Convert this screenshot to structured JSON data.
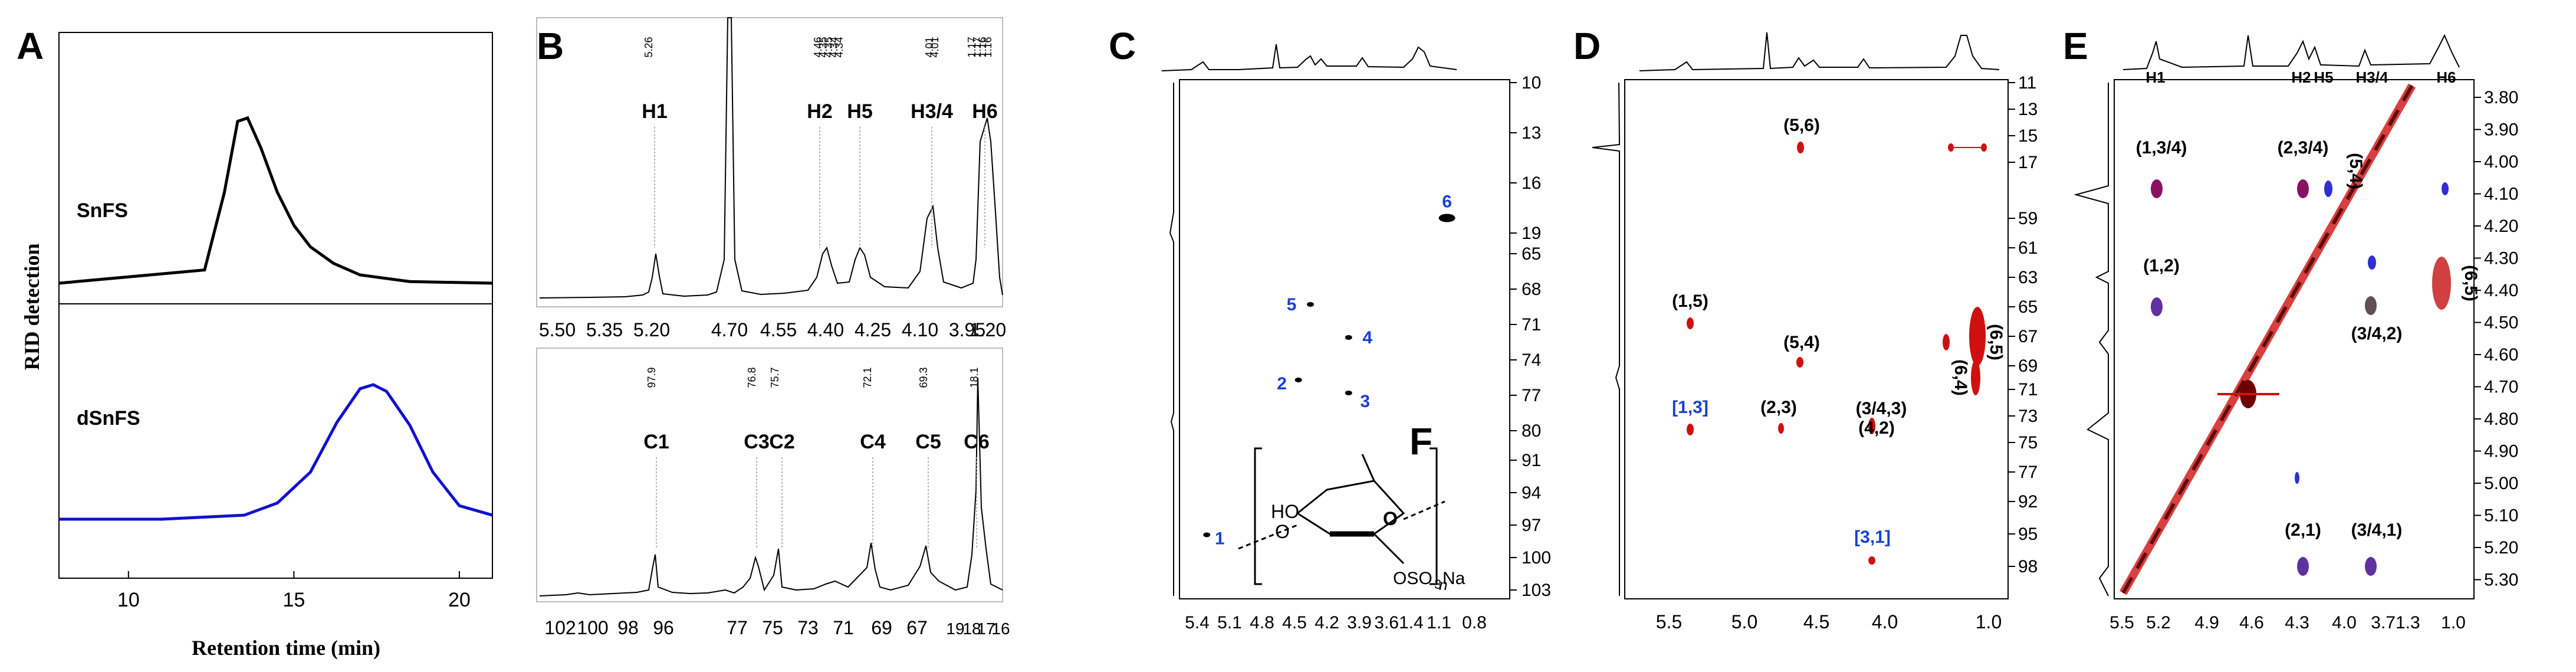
{
  "chart_data": [
    {
      "panel": "A",
      "type": "line",
      "ylabel": "RID detection",
      "xlabel": "Retention time (min)",
      "x_ticks": [
        10,
        15,
        20
      ],
      "xlim": [
        7.9,
        21
      ],
      "series": [
        {
          "name": "SnFS",
          "color": "#000000",
          "x": [
            7.9,
            12.3,
            12.9,
            13.3,
            13.6,
            14.0,
            14.5,
            15.0,
            15.5,
            16.2,
            17.0,
            18.5,
            21.0
          ],
          "y": [
            0.0,
            0.08,
            0.55,
            0.98,
            1.0,
            0.82,
            0.55,
            0.35,
            0.22,
            0.12,
            0.05,
            0.01,
            0.0
          ]
        },
        {
          "name": "dSnFS",
          "color": "#1010d0",
          "x": [
            7.9,
            11.0,
            13.5,
            14.5,
            15.5,
            16.3,
            17.0,
            17.4,
            17.8,
            18.5,
            19.2,
            20.0,
            21.0
          ],
          "y": [
            0.0,
            0.0,
            0.03,
            0.12,
            0.35,
            0.72,
            0.97,
            1.0,
            0.95,
            0.7,
            0.35,
            0.1,
            0.03
          ]
        }
      ]
    },
    {
      "panel": "B",
      "type": "line",
      "spectra": [
        {
          "nucleus": "1H",
          "x_ticks": [
            "5.50",
            "5.35",
            "5.20",
            "4.70",
            "4.55",
            "4.40",
            "4.25",
            "4.10",
            "3.95",
            "1.20"
          ],
          "peak_shifts": [
            "5.26",
            "4.46",
            "4.35",
            "4.35",
            "4.34",
            "4.34",
            "4.01",
            "4.01",
            "1.17",
            "1.17",
            "1.16",
            "1.16"
          ],
          "assignments": [
            {
              "label": "H1",
              "shift": 5.26
            },
            {
              "label": "H2",
              "shift": 4.46
            },
            {
              "label": "H5",
              "shift": 4.35
            },
            {
              "label": "H3/4",
              "shift": 4.01
            },
            {
              "label": "H6",
              "shift": 1.17
            }
          ]
        },
        {
          "nucleus": "13C",
          "x_ticks": [
            "102",
            "100",
            "98",
            "96",
            "77",
            "75",
            "73",
            "71",
            "69",
            "67",
            "19",
            "18",
            "17",
            "16"
          ],
          "peak_shifts": [
            "97.9",
            "76.8",
            "75.7",
            "72.1",
            "69.3",
            "18.1"
          ],
          "assignments": [
            {
              "label": "C1",
              "shift": 97.9
            },
            {
              "label": "C3",
              "shift": 76.8
            },
            {
              "label": "C2",
              "shift": 75.7
            },
            {
              "label": "C4",
              "shift": 72.1
            },
            {
              "label": "C5",
              "shift": 69.3
            },
            {
              "label": "C6",
              "shift": 18.1
            }
          ]
        }
      ]
    },
    {
      "panel": "C",
      "type": "scatter",
      "x_ticks": [
        "5.4",
        "5.1",
        "4.8",
        "4.5",
        "4.2",
        "3.9",
        "3.61.4",
        "1.1",
        "0.8"
      ],
      "y_ticks": [
        "10",
        "13",
        "16",
        "19",
        "65",
        "68",
        "71",
        "74",
        "77",
        "80",
        "91",
        "94",
        "97",
        "100",
        "103"
      ],
      "points": [
        {
          "label": "1",
          "x": 5.3,
          "y": 97.9,
          "color": "#1a3fd1"
        },
        {
          "label": "2",
          "x": 4.46,
          "y": 75.7,
          "color": "#1a3fd1"
        },
        {
          "label": "3",
          "x": 4.0,
          "y": 76.8,
          "color": "#1a3fd1"
        },
        {
          "label": "4",
          "x": 4.0,
          "y": 72.1,
          "color": "#1a3fd1"
        },
        {
          "label": "5",
          "x": 4.35,
          "y": 69.3,
          "color": "#1a3fd1"
        },
        {
          "label": "6",
          "x": 1.17,
          "y": 18.1,
          "color": "#1a3fd1"
        }
      ],
      "structure": {
        "panel": "F",
        "texts": [
          "HO",
          "O",
          "O",
          "OSO",
          "3",
          "Na",
          "n"
        ]
      }
    },
    {
      "panel": "D",
      "type": "scatter",
      "x_ticks": [
        "5.0",
        "4.5",
        "4.0",
        "1.0"
      ],
      "x_ticks_extra": [
        "5.5"
      ],
      "y_ticks": [
        "11",
        "13",
        "15",
        "17",
        "59",
        "61",
        "63",
        "65",
        "67",
        "69",
        "71",
        "73",
        "75",
        "77",
        "92",
        "95",
        "98"
      ],
      "cross_peaks": [
        {
          "label": "(5,6)",
          "color": "#000000"
        },
        {
          "label": "(1,5)",
          "color": "#000000"
        },
        {
          "label": "(5,4)",
          "color": "#000000"
        },
        {
          "label": "[1,3]",
          "color": "#1a3fd1"
        },
        {
          "label": "(2,3)",
          "color": "#000000"
        },
        {
          "label": "(3/4,3)",
          "color": "#000000"
        },
        {
          "label": "(4,2)",
          "color": "#000000"
        },
        {
          "label": "[3,1]",
          "color": "#1a3fd1"
        },
        {
          "label": "(6,4)",
          "color": "#000000"
        },
        {
          "label": "(6,5)",
          "color": "#000000"
        }
      ]
    },
    {
      "panel": "E",
      "type": "scatter",
      "x_ticks": [
        "5.5",
        "5.2",
        "4.9",
        "4.6",
        "4.3",
        "4.0",
        "3.71.3",
        "1.0"
      ],
      "y_ticks": [
        "3.80",
        "3.90",
        "4.00",
        "4.10",
        "4.20",
        "4.30",
        "4.40",
        "4.50",
        "4.60",
        "4.70",
        "4.80",
        "4.90",
        "5.00",
        "5.10",
        "5.20",
        "5.30"
      ],
      "top_labels": [
        "H1",
        "H2",
        "H5",
        "H3/4",
        "H6"
      ],
      "cross_peaks": [
        {
          "label": "(1,3/4)"
        },
        {
          "label": "(2,3/4)"
        },
        {
          "label": "(5,4)"
        },
        {
          "label": "(1,2)"
        },
        {
          "label": "(3/4,2)"
        },
        {
          "label": "(6,5)"
        },
        {
          "label": "(2,1)"
        },
        {
          "label": "(3/4,1)"
        }
      ]
    }
  ],
  "panel_letters": [
    "A",
    "B",
    "C",
    "D",
    "E",
    "F"
  ]
}
